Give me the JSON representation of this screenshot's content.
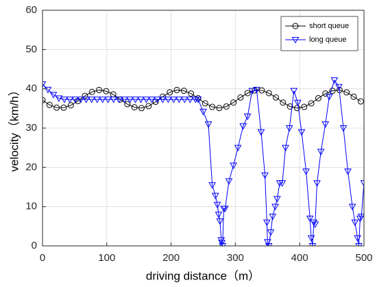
{
  "chart_data": {
    "type": "line",
    "xlabel": "driving distance（m）",
    "ylabel": "velocity（km/h）",
    "xlim": [
      0,
      500
    ],
    "xticks": [
      0,
      100,
      200,
      300,
      400,
      500
    ],
    "ylim": [
      0,
      60
    ],
    "yticks": [
      0,
      10,
      20,
      30,
      40,
      50,
      60
    ],
    "grid": true,
    "legend": "upper right",
    "series": [
      {
        "name": "short queue",
        "color": "#000000",
        "marker": "circle",
        "x": [
          0,
          11,
          22,
          33,
          44,
          55,
          66,
          77,
          88,
          99,
          110,
          121,
          132,
          143,
          154,
          165,
          176,
          187,
          198,
          209,
          220,
          231,
          242,
          253,
          264,
          275,
          286,
          297,
          308,
          319,
          330,
          341,
          352,
          363,
          374,
          385,
          396,
          407,
          418,
          429,
          440,
          451,
          462,
          473,
          484,
          495
        ],
        "values": [
          37.1,
          35.9,
          35.2,
          35.2,
          35.8,
          36.9,
          38.2,
          39.2,
          39.7,
          39.4,
          38.6,
          37.3,
          36.1,
          35.3,
          35.1,
          35.6,
          36.7,
          38.0,
          39.1,
          39.7,
          39.5,
          38.8,
          37.6,
          36.3,
          35.4,
          35.1,
          35.5,
          36.5,
          37.8,
          38.9,
          39.6,
          39.6,
          38.9,
          37.8,
          36.5,
          35.5,
          35.1,
          35.4,
          36.3,
          37.6,
          38.8,
          39.5,
          39.7,
          39.1,
          38.0,
          36.8
        ]
      },
      {
        "name": "long queue",
        "color": "#0000ff",
        "marker": "triangle-down",
        "x": [
          0,
          8.5,
          17,
          25.5,
          34,
          42.5,
          51,
          59.5,
          68,
          76.5,
          85,
          93.5,
          102,
          110.5,
          119,
          127.5,
          136,
          144.5,
          153,
          161.5,
          170,
          178.5,
          187,
          195.5,
          204,
          212.5,
          221,
          229.5,
          238,
          242,
          250,
          258,
          264,
          269,
          272,
          274,
          276,
          278,
          279,
          280,
          282,
          284,
          290,
          297,
          304,
          312,
          319,
          326,
          333,
          340,
          346,
          349,
          350,
          352,
          355,
          358,
          362,
          365,
          369,
          373,
          378,
          384,
          391,
          397,
          403,
          410,
          416,
          418,
          420,
          422,
          424,
          427,
          433,
          440,
          446,
          454,
          461,
          468,
          475,
          482,
          486,
          490,
          492,
          494,
          496,
          500
        ],
        "values": [
          41.2,
          39.8,
          38.5,
          37.6,
          37.3,
          37.3,
          37.3,
          37.3,
          37.3,
          37.3,
          37.3,
          37.3,
          37.3,
          37.3,
          37.3,
          37.3,
          37.3,
          37.3,
          37.3,
          37.3,
          37.3,
          37.3,
          37.3,
          37.3,
          37.3,
          37.3,
          37.3,
          37.3,
          37.3,
          37.3,
          34.2,
          31.0,
          15.5,
          12.8,
          10.5,
          8.0,
          6.3,
          1.5,
          0.8,
          0,
          9.5,
          9.5,
          16.5,
          20.5,
          25,
          30.5,
          33,
          39.5,
          39.8,
          29,
          18,
          6,
          1,
          0,
          3.5,
          7.5,
          10,
          12,
          16,
          16,
          25,
          30,
          39.5,
          36.5,
          29,
          19,
          7,
          2,
          0,
          6,
          5.5,
          16,
          24,
          31,
          38,
          42.2,
          40.5,
          30,
          19,
          10,
          6,
          2,
          0,
          7,
          7.5,
          16
        ]
      }
    ]
  }
}
